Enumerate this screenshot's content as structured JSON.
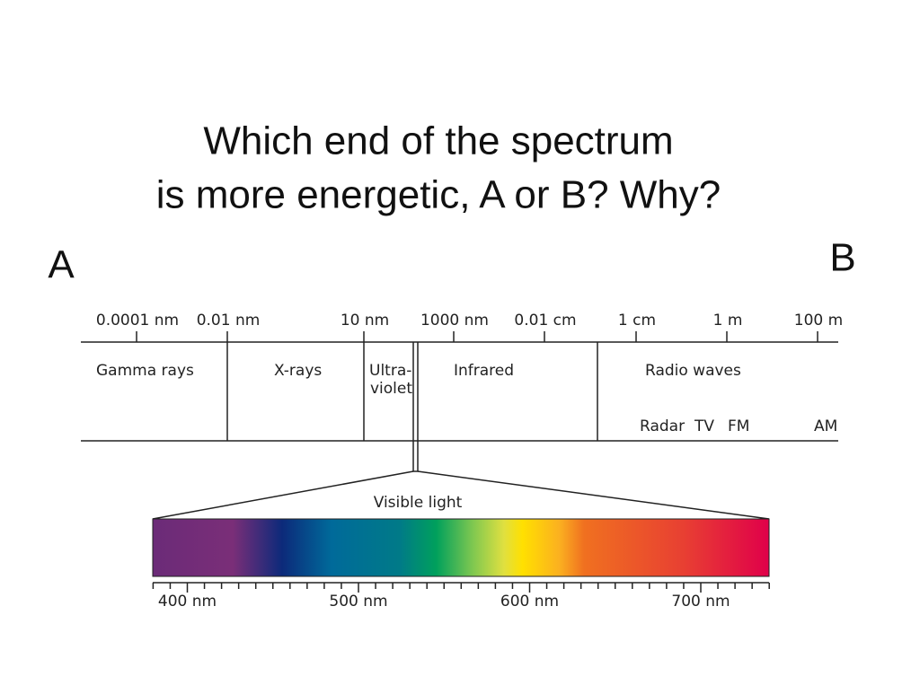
{
  "title_lines": [
    "Which end of the spectrum",
    "is more energetic, A or B?  Why?"
  ],
  "end_labels": {
    "left": "A",
    "right": "B"
  },
  "scale_labels": [
    "0.0001 nm",
    "0.01 nm",
    "10 nm",
    "1000 nm",
    "0.01 cm",
    "1 cm",
    "1 m",
    "100 m"
  ],
  "regions": [
    "Gamma rays",
    "X-rays",
    "Ultra-",
    "violet",
    "Infrared",
    "Radio waves"
  ],
  "radio_bands": [
    "Radar",
    "TV",
    "FM",
    "AM"
  ],
  "visible_label": "Visible light",
  "visible_scale_labels": [
    "400 nm",
    "500 nm",
    "600 nm",
    "700 nm"
  ]
}
